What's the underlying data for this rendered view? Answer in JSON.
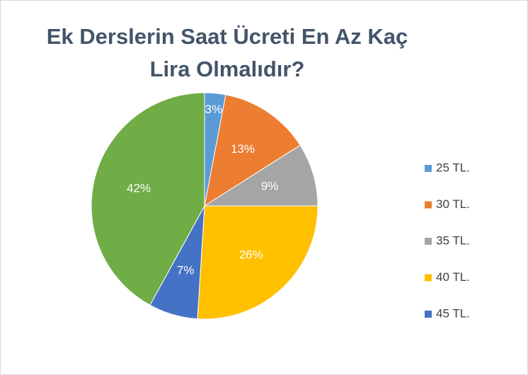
{
  "chart_data": {
    "type": "pie",
    "title": "Ek Derslerin Saat Ücreti En Az Kaç Lira Olmalıdır?",
    "categories": [
      "25 TL.",
      "30 TL.",
      "35 TL.",
      "40 TL.",
      "45 TL.",
      null
    ],
    "values": [
      3,
      13,
      9,
      26,
      7,
      42
    ],
    "value_labels": [
      "3%",
      "13%",
      "9%",
      "26%",
      "7%",
      "42%"
    ],
    "colors": [
      "#5b9bd5",
      "#ed7d31",
      "#a5a5a5",
      "#ffc000",
      "#4472c4",
      "#70ad47"
    ]
  }
}
